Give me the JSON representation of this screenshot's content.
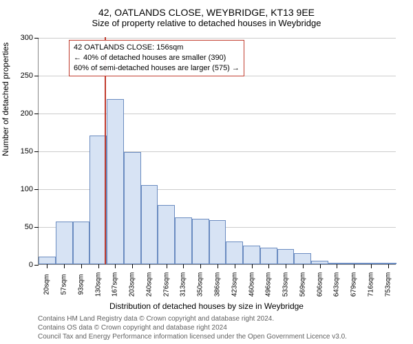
{
  "title_line1": "42, OATLANDS CLOSE, WEYBRIDGE, KT13 9EE",
  "title_line2": "Size of property relative to detached houses in Weybridge",
  "yaxis_title": "Number of detached properties",
  "xaxis_title": "Distribution of detached houses by size in Weybridge",
  "attrib_line1": "Contains HM Land Registry data © Crown copyright and database right 2024.",
  "attrib_line2": "Contains OS data © Crown copyright and database right 2024",
  "attrib_line3": "Council Tax and Energy Performance information licensed under the Open Government Licence v3.0.",
  "attrib_color": "#606060",
  "anno_line1": "42 OATLANDS CLOSE: 156sqm",
  "anno_line2": "← 40% of detached houses are smaller (390)",
  "anno_line3": "60% of semi-detached houses are larger (575) →",
  "anno_border_color": "#c0392b",
  "marker_color": "#c0392b",
  "marker_value": 156,
  "bar_fill": "#d7e3f4",
  "bar_border": "#6a8bc0",
  "grid_color": "#cccccc",
  "background_color": "#ffffff",
  "ymax": 300,
  "ytick_step": 50,
  "y_ticks": [
    0,
    50,
    100,
    150,
    200,
    250,
    300
  ],
  "x_tick_labels": [
    "20sqm",
    "57sqm",
    "93sqm",
    "130sqm",
    "167sqm",
    "203sqm",
    "240sqm",
    "276sqm",
    "313sqm",
    "350sqm",
    "386sqm",
    "423sqm",
    "460sqm",
    "496sqm",
    "533sqm",
    "569sqm",
    "606sqm",
    "643sqm",
    "679sqm",
    "716sqm",
    "753sqm"
  ],
  "x_min": 20,
  "x_max": 753,
  "counts": [
    10,
    56,
    56,
    170,
    218,
    148,
    105,
    78,
    62,
    60,
    58,
    30,
    25,
    22,
    20,
    15,
    5,
    2,
    0,
    1,
    1
  ]
}
